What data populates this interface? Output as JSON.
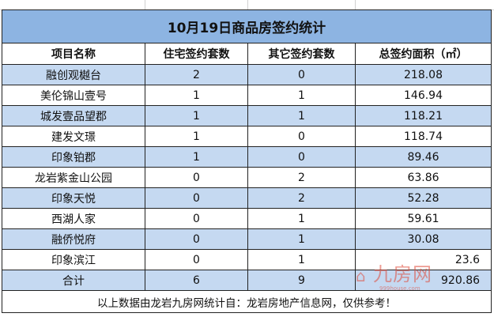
{
  "title": "10月19日商品房签约统计",
  "headers": [
    "项目名称",
    "住宅签约套数",
    "其它签约套数",
    "总签约面积（㎡）"
  ],
  "rows": [
    [
      "融创观樾台",
      "2",
      "0",
      "218.08"
    ],
    [
      "美伦锦山壹号",
      "1",
      "1",
      "146.94"
    ],
    [
      "城发壹品望郡",
      "1",
      "1",
      "118.21"
    ],
    [
      "建发文璟",
      "1",
      "0",
      "118.74"
    ],
    [
      "印象铂郡",
      "1",
      "0",
      "89.46"
    ],
    [
      "龙岩紫金山公园",
      "0",
      "2",
      "63.86"
    ],
    [
      "印象天悦",
      "0",
      "2",
      "52.28"
    ],
    [
      "西湖人家",
      "0",
      "1",
      "59.61"
    ],
    [
      "融侨悦府",
      "0",
      "1",
      "30.08"
    ],
    [
      "印象滨江",
      "0",
      "1",
      "23.6"
    ]
  ],
  "total": [
    "合计",
    "6",
    "9",
    "920.86"
  ],
  "footer": "以上数据由龙岩九房网统计自：龙岩房地产信息网，仅供参考！",
  "watermark": {
    "name": "九房网",
    "url": "999house.com"
  },
  "colors": {
    "title_bg": "#8db4e2",
    "stripe": "#c5d9f1",
    "watermark": "#e04a3a"
  }
}
